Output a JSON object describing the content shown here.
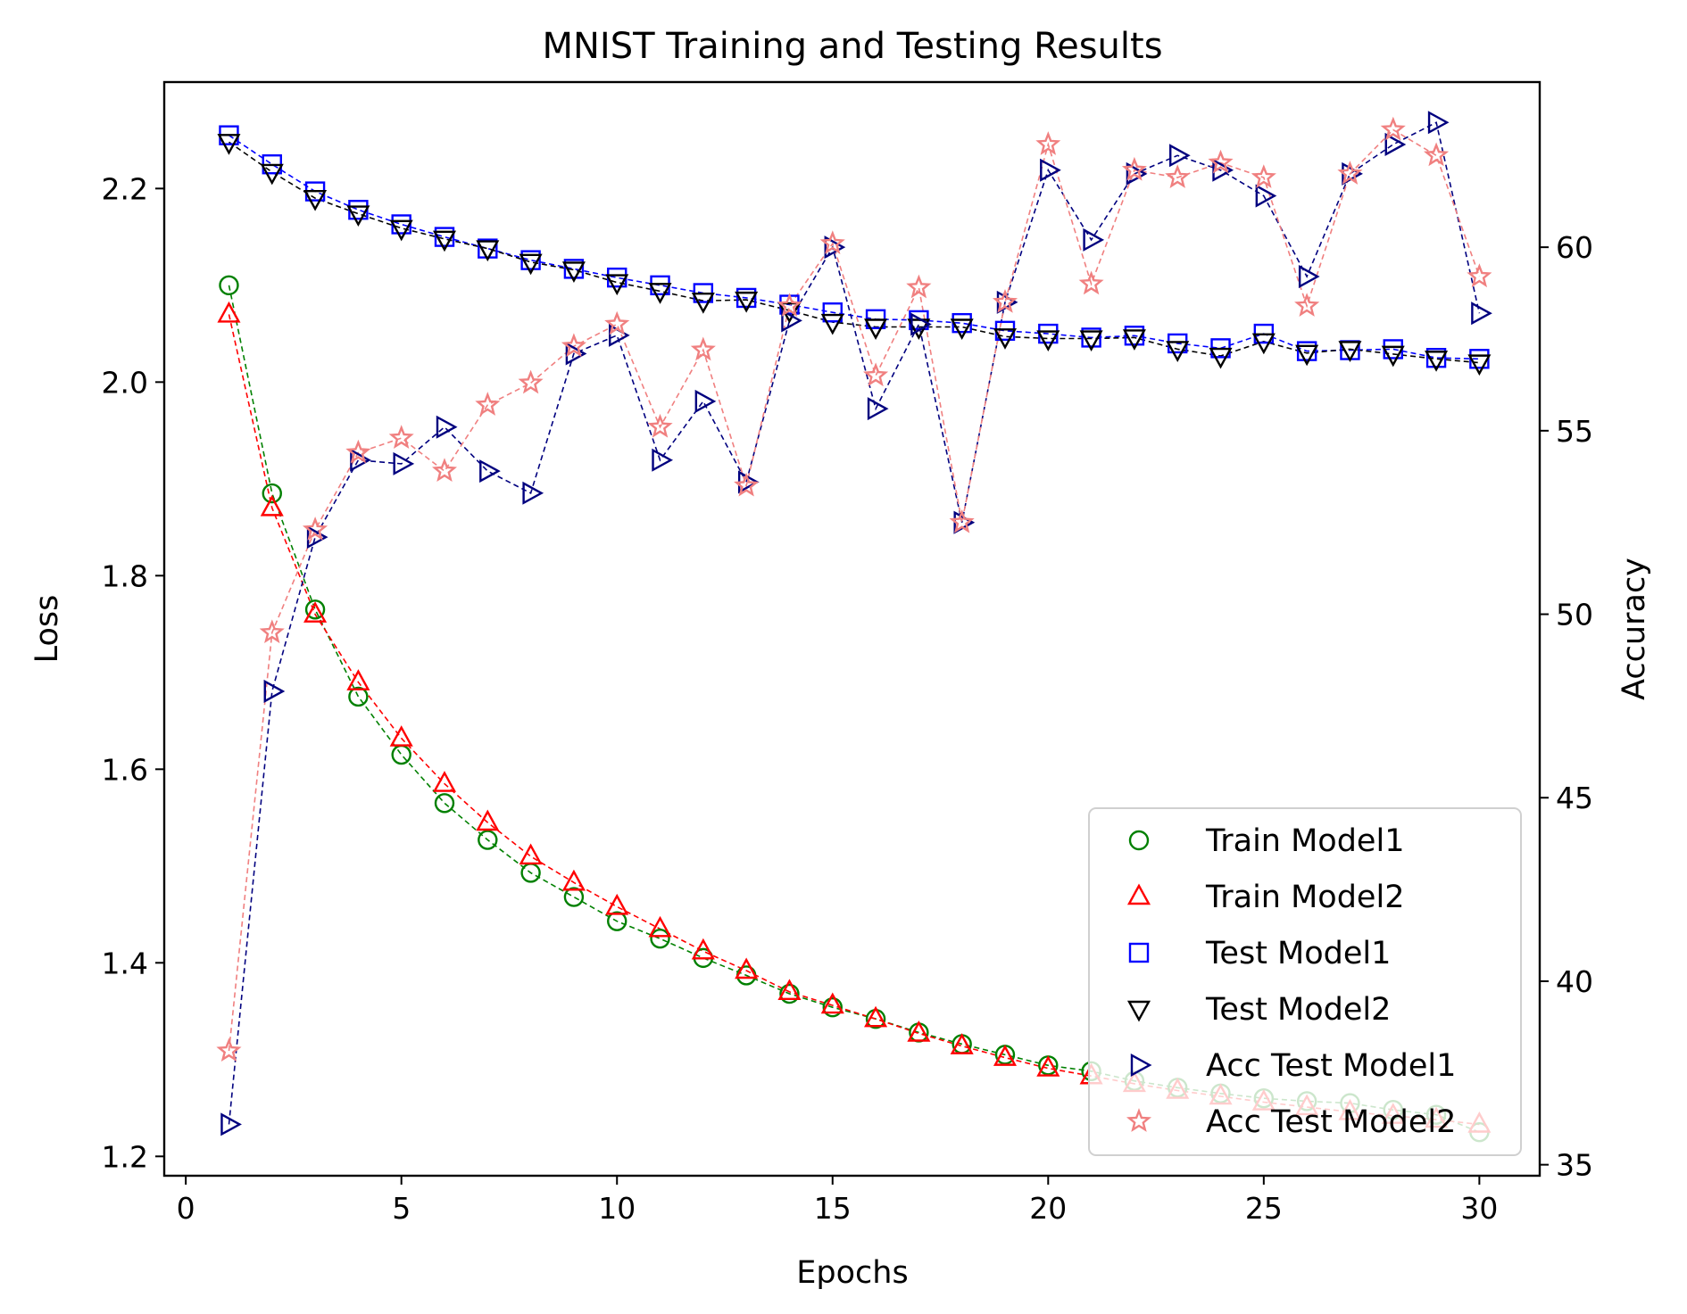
{
  "chart_data": {
    "type": "line",
    "title": "MNIST Training and Testing Results",
    "xlabel": "Epochs",
    "ylabel_left": "Loss",
    "ylabel_right": "Accuracy",
    "x_axis": {
      "min": -0.5,
      "max": 31.4,
      "ticks": [
        0,
        5,
        10,
        15,
        20,
        25,
        30
      ],
      "tick_labels": [
        "0",
        "5",
        "10",
        "15",
        "20",
        "25",
        "30"
      ]
    },
    "y_left_axis": {
      "min": 1.18,
      "max": 2.31,
      "ticks": [
        1.2,
        1.4,
        1.6,
        1.8,
        2.0,
        2.2
      ],
      "tick_labels": [
        "1.2",
        "1.4",
        "1.6",
        "1.8",
        "2.0",
        "2.2"
      ]
    },
    "y_right_axis": {
      "min": 34.7,
      "max": 64.5,
      "ticks": [
        35,
        40,
        45,
        50,
        55,
        60
      ],
      "tick_labels": [
        "35",
        "40",
        "45",
        "50",
        "55",
        "60"
      ]
    },
    "legend_position": "lower-right",
    "x": [
      1,
      2,
      3,
      4,
      5,
      6,
      7,
      8,
      9,
      10,
      11,
      12,
      13,
      14,
      15,
      16,
      17,
      18,
      19,
      20,
      21,
      22,
      23,
      24,
      25,
      26,
      27,
      28,
      29,
      30
    ],
    "series": [
      {
        "name": "Train Model1",
        "axis": "left",
        "marker": "circle",
        "color": "#008000",
        "values": [
          2.1,
          1.885,
          1.765,
          1.675,
          1.615,
          1.565,
          1.527,
          1.493,
          1.468,
          1.443,
          1.425,
          1.405,
          1.387,
          1.368,
          1.354,
          1.342,
          1.328,
          1.316,
          1.305,
          1.294,
          1.288,
          1.278,
          1.271,
          1.265,
          1.26,
          1.257,
          1.255,
          1.248,
          1.243,
          1.225
        ]
      },
      {
        "name": "Train Model2",
        "axis": "left",
        "marker": "triangle-up",
        "color": "#ff0000",
        "values": [
          2.07,
          1.87,
          1.76,
          1.69,
          1.632,
          1.585,
          1.545,
          1.51,
          1.483,
          1.458,
          1.435,
          1.412,
          1.392,
          1.37,
          1.356,
          1.342,
          1.327,
          1.314,
          1.302,
          1.291,
          1.283,
          1.275,
          1.268,
          1.262,
          1.256,
          1.251,
          1.246,
          1.242,
          1.238,
          1.233
        ]
      },
      {
        "name": "Test Model1",
        "axis": "left",
        "marker": "square",
        "color": "#0000ff",
        "values": [
          2.255,
          2.225,
          2.197,
          2.178,
          2.163,
          2.15,
          2.138,
          2.126,
          2.117,
          2.108,
          2.1,
          2.092,
          2.087,
          2.08,
          2.072,
          2.065,
          2.064,
          2.061,
          2.053,
          2.05,
          2.046,
          2.048,
          2.04,
          2.035,
          2.05,
          2.032,
          2.033,
          2.034,
          2.025,
          2.024
        ]
      },
      {
        "name": "Test Model2",
        "axis": "left",
        "marker": "triangle-down",
        "color": "#000000",
        "values": [
          2.248,
          2.217,
          2.19,
          2.174,
          2.159,
          2.148,
          2.138,
          2.124,
          2.116,
          2.103,
          2.094,
          2.084,
          2.085,
          2.074,
          2.062,
          2.057,
          2.057,
          2.057,
          2.047,
          2.045,
          2.045,
          2.046,
          2.034,
          2.027,
          2.042,
          2.03,
          2.034,
          2.029,
          2.024,
          2.02
        ]
      },
      {
        "name": "Acc Test Model1",
        "axis": "right",
        "marker": "triangle-right",
        "color": "#00007f",
        "values": [
          36.1,
          47.9,
          52.1,
          54.2,
          54.1,
          55.1,
          53.9,
          53.3,
          57.1,
          57.6,
          54.2,
          55.8,
          53.6,
          58.0,
          60.0,
          55.6,
          57.9,
          52.5,
          58.5,
          62.1,
          60.2,
          62.0,
          62.5,
          62.1,
          61.4,
          59.2,
          62.0,
          62.8,
          63.4,
          58.2
        ]
      },
      {
        "name": "Acc Test Model2",
        "axis": "right",
        "marker": "star",
        "color": "#f08080",
        "values": [
          38.1,
          49.5,
          52.3,
          54.4,
          54.8,
          53.9,
          55.7,
          56.3,
          57.3,
          57.9,
          55.1,
          57.2,
          53.5,
          58.4,
          60.1,
          56.5,
          58.9,
          52.5,
          58.5,
          62.8,
          59.0,
          62.1,
          61.9,
          62.3,
          61.9,
          58.4,
          62.0,
          63.2,
          62.5,
          59.2
        ]
      }
    ]
  }
}
